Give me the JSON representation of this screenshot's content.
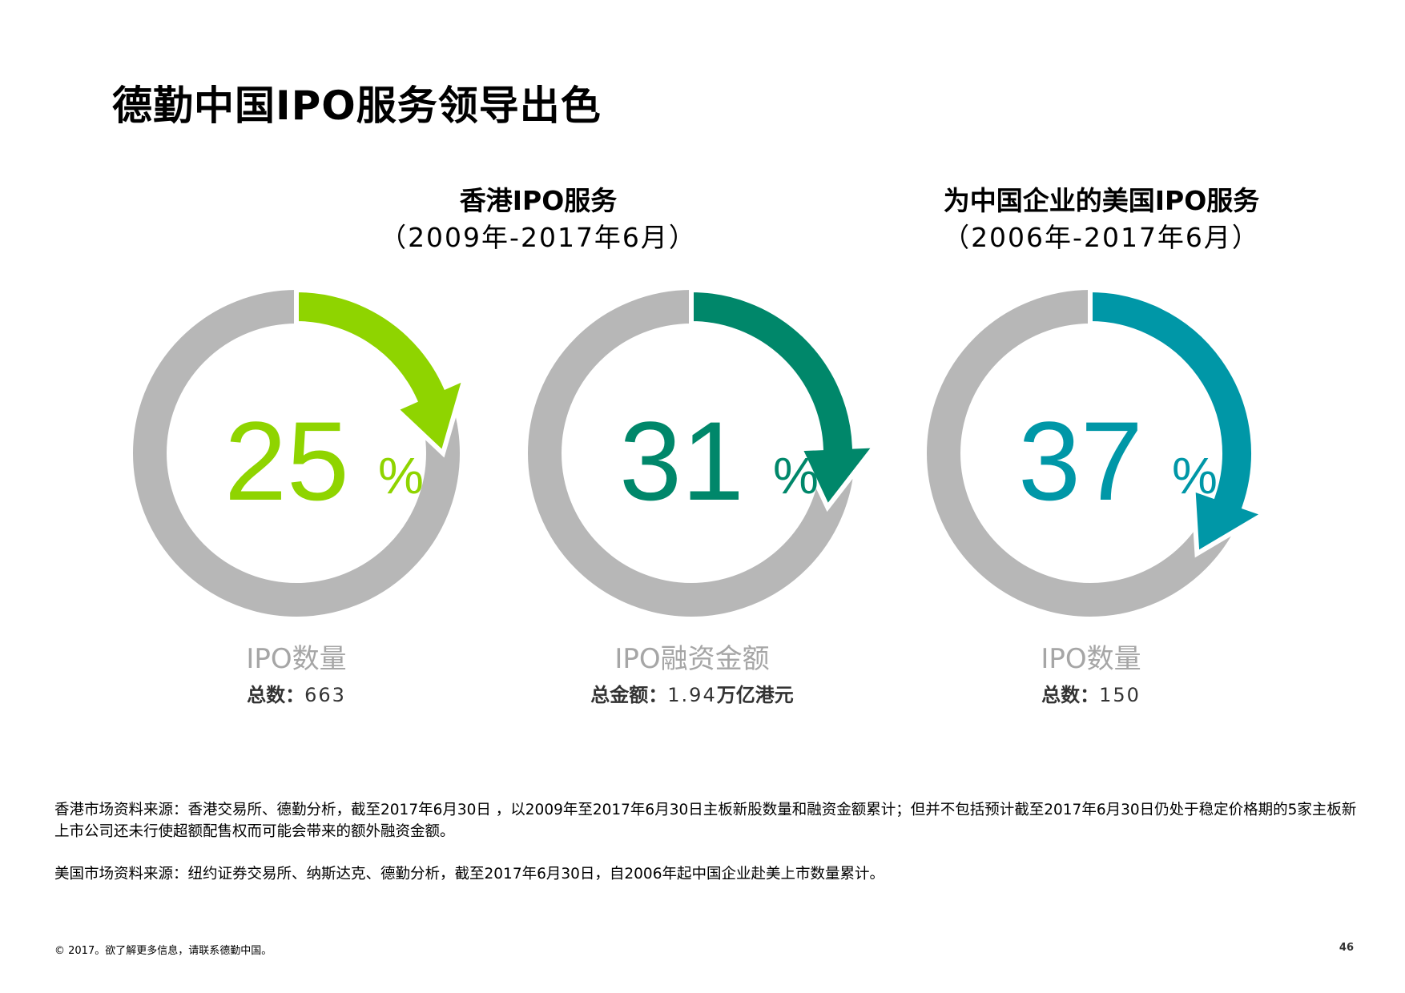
{
  "title": "德勤中国IPO服务领导出色",
  "groups": [
    {
      "title": "香港IPO服务",
      "period": "（2009年-2017年6月）"
    },
    {
      "title": "为中国企业的美国IPO服务",
      "period": "（2006年-2017年6月）"
    }
  ],
  "chart_data": [
    {
      "type": "pie",
      "variant": "donut",
      "value": 25,
      "unit": "%",
      "label": "IPO数量",
      "total_label": "总数：",
      "total_value": "663",
      "color": "#8fd400"
    },
    {
      "type": "pie",
      "variant": "donut",
      "value": 31,
      "unit": "%",
      "label": "IPO融资金额",
      "total_label": "总金额：",
      "total_value": "1.94",
      "total_unit": "万亿港元",
      "color": "#00876a"
    },
    {
      "type": "pie",
      "variant": "donut",
      "value": 37,
      "unit": "%",
      "label": "IPO数量",
      "total_label": "总数：",
      "total_value": "150",
      "color": "#0097a7"
    }
  ],
  "ring_color": "#b7b7b7",
  "sources": [
    "香港市场资料来源：香港交易所、德勤分析，截至2017年6月30日 ，以2009年至2017年6月30日主板新股数量和融资金额累计；但并不包括预计截至2017年6月30日仍处于稳定价格期的5家主板新上市公司还未行使超额配售权而可能会带来的额外融资金额。",
    "美国市场资料来源：纽约证券交易所、纳斯达克、德勤分析，截至2017年6月30日，自2006年起中国企业赴美上市数量累计。"
  ],
  "footer": "© 2017。欲了解更多信息，请联系德勤中国。",
  "page_number": "46"
}
